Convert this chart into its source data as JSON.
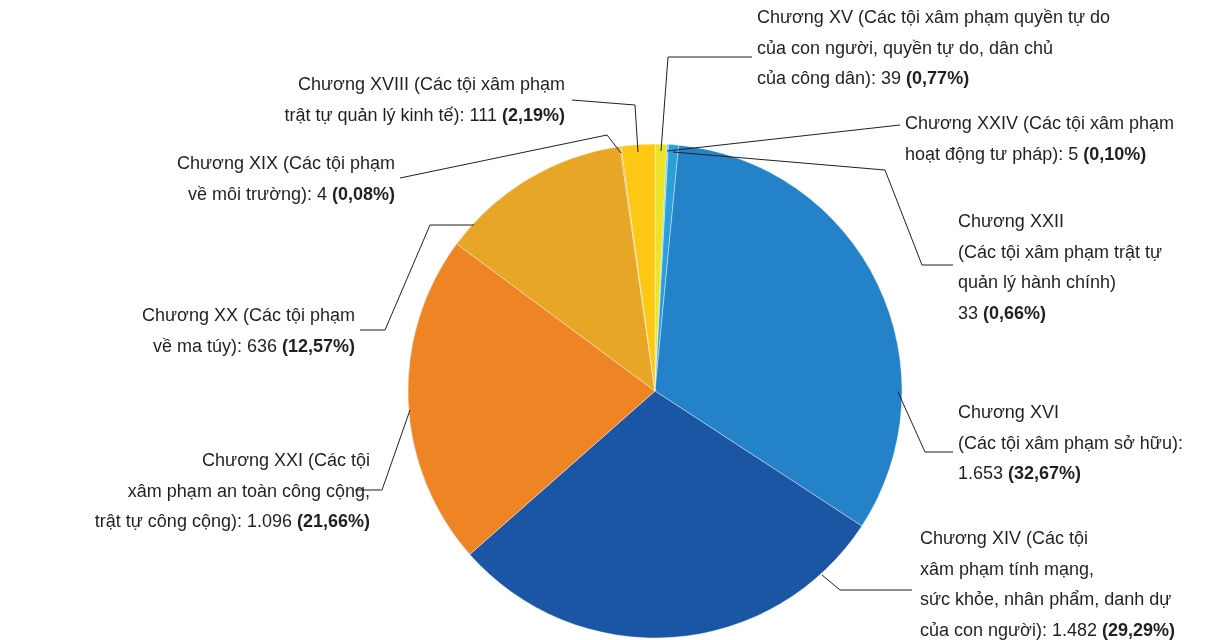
{
  "chart_data": {
    "type": "pie",
    "categories": [
      "Chương XV (Các tội xâm phạm quyền tự do của con người, quyền tự do, dân chủ của công dân)",
      "Chương XXIV (Các tội xâm phạm hoạt động tư pháp)",
      "Chương XXII (Các tội xâm phạm trật tự quản lý hành chính)",
      "Chương XVI (Các tội xâm phạm sở hữu)",
      "Chương XIV (Các tội xâm phạm tính mạng, sức khỏe, nhân phẩm, danh dự của con người)",
      "Chương XXI (Các tội xâm phạm an toàn công cộng, trật tự công cộng)",
      "Chương XX (Các tội phạm về ma túy)",
      "Chương XIX (Các tội phạm về môi trường)",
      "Chương XVIII (Các tội xâm phạm trật tự quản lý kinh tế)"
    ],
    "values": [
      0.77,
      0.1,
      0.66,
      32.67,
      29.29,
      21.66,
      12.57,
      0.08,
      2.19
    ],
    "value_labels": [
      ": 39 (0,77%)",
      ": 5 (0,10%)",
      "33 (0,66%)",
      ": 1.653 (32,67%)",
      ": 1.482 (29,29%)",
      ": 1.096 (21,66%)",
      ": 636 (12,57%)",
      ": 4 (0,08%)",
      ": 111 (2,19%)"
    ],
    "colors": [
      "#ebe42a",
      "#5bc0eb",
      "#2a9fd8",
      "#2382c8",
      "#1a56a4",
      "#ef8424",
      "#e8a626",
      "#d99a20",
      "#fcc813"
    ]
  }
}
